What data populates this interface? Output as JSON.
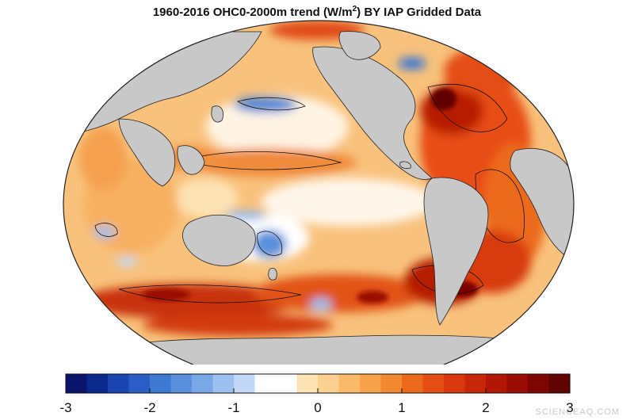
{
  "title": {
    "prefix": "1960-2016 OHC0-2000m trend  (W/m",
    "sup": "2",
    "suffix": ") BY IAP Gridded Data"
  },
  "colorbar": {
    "min": -3,
    "max": 3,
    "tick_labels": [
      "-3",
      "-2",
      "-1",
      "0",
      "1",
      "2",
      "3"
    ],
    "tick_values": [
      -3,
      -2,
      -1,
      0,
      1,
      2,
      3
    ],
    "colors": [
      "#08156b",
      "#0c2a8e",
      "#1a44b0",
      "#2a5ec4",
      "#3d78d2",
      "#5890dc",
      "#78a8e6",
      "#9cc0ef",
      "#c2d8f6",
      "#ffffff",
      "#ffffff",
      "#fde3b4",
      "#fbd090",
      "#f9bb6a",
      "#f6a24a",
      "#f2882f",
      "#ec6a1c",
      "#e44e12",
      "#d9380c",
      "#c82608",
      "#b31605",
      "#9a0c03",
      "#7e0602",
      "#600301"
    ]
  },
  "watermark": "SCIENCEAQ.COM",
  "colors": {
    "land": "#c8c8c8",
    "ocean_base": "#f8c27c"
  }
}
